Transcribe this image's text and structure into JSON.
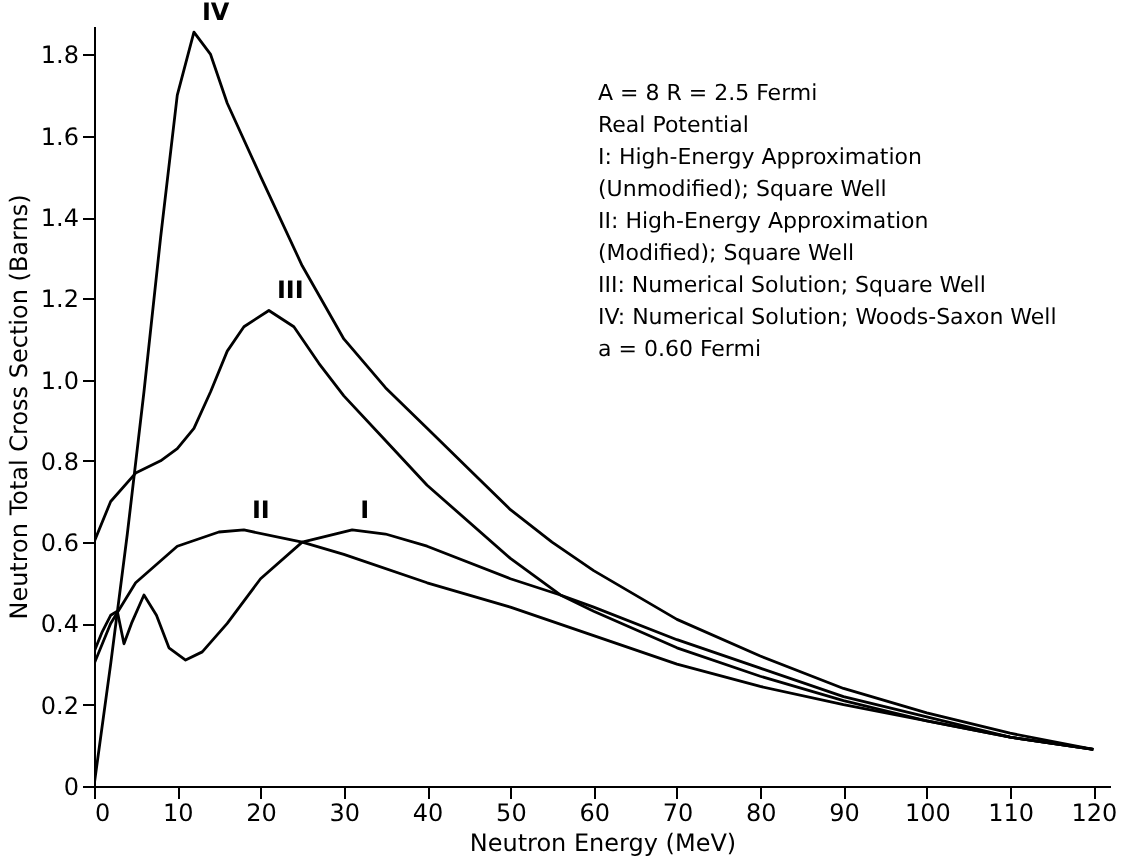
{
  "chart_data": {
    "type": "line",
    "xlabel": "Neutron Energy (MeV)",
    "ylabel": "Neutron Total Cross Section (Barns)",
    "xlim": [
      0,
      122
    ],
    "ylim": [
      0,
      1.87
    ],
    "xticks": [
      0,
      10,
      20,
      30,
      40,
      50,
      60,
      70,
      80,
      90,
      100,
      110,
      120
    ],
    "yticks": [
      0,
      {
        "value": 0.2,
        "label": "0.2"
      },
      {
        "value": 0.4,
        "label": "0.4"
      },
      {
        "value": 0.6,
        "label": "0.6"
      },
      {
        "value": 0.8,
        "label": "0.8"
      },
      {
        "value": 1,
        "label": "1.0"
      },
      {
        "value": 1.2,
        "label": "1.2"
      },
      {
        "value": 1.4,
        "label": "1.4"
      },
      {
        "value": 1.6,
        "label": "1.6"
      },
      {
        "value": 1.8,
        "label": "1.8"
      }
    ],
    "grid": false,
    "marker": "none",
    "line_style": "solid",
    "series": [
      {
        "name": "I",
        "color": "#000000",
        "x": [
          0,
          1,
          2,
          2.8,
          3.6,
          4.5,
          6,
          7.5,
          9,
          11,
          13,
          16,
          20,
          25,
          31,
          35,
          40,
          50,
          56,
          60,
          70,
          80,
          90,
          100,
          110,
          120
        ],
        "values": [
          0.33,
          0.38,
          0.42,
          0.43,
          0.35,
          0.4,
          0.47,
          0.42,
          0.34,
          0.31,
          0.33,
          0.4,
          0.51,
          0.6,
          0.63,
          0.62,
          0.59,
          0.51,
          0.47,
          0.44,
          0.36,
          0.29,
          0.22,
          0.17,
          0.12,
          0.09
        ]
      },
      {
        "name": "II",
        "color": "#000000",
        "x": [
          0,
          2,
          5,
          10,
          15,
          18,
          25,
          30,
          40,
          50,
          60,
          70,
          80,
          90,
          100,
          110,
          120
        ],
        "values": [
          0.3,
          0.4,
          0.5,
          0.59,
          0.625,
          0.63,
          0.6,
          0.57,
          0.5,
          0.44,
          0.37,
          0.3,
          0.245,
          0.2,
          0.16,
          0.12,
          0.09
        ]
      },
      {
        "name": "III",
        "color": "#000000",
        "x": [
          0,
          2,
          5,
          8,
          10,
          12,
          14,
          16,
          18,
          21,
          24,
          27,
          30,
          35,
          40,
          50,
          56,
          60,
          70,
          80,
          90,
          100,
          110,
          120
        ],
        "values": [
          0.6,
          0.7,
          0.77,
          0.8,
          0.83,
          0.88,
          0.97,
          1.07,
          1.13,
          1.17,
          1.13,
          1.04,
          0.96,
          0.85,
          0.74,
          0.56,
          0.47,
          0.43,
          0.34,
          0.27,
          0.21,
          0.16,
          0.12,
          0.09
        ]
      },
      {
        "name": "IV",
        "color": "#000000",
        "x": [
          0,
          2,
          4,
          6,
          8,
          10,
          12,
          14,
          16,
          20,
          25,
          30,
          35,
          40,
          45,
          50,
          55,
          60,
          70,
          80,
          90,
          100,
          110,
          120
        ],
        "values": [
          0,
          0.3,
          0.62,
          0.97,
          1.35,
          1.7,
          1.855,
          1.8,
          1.68,
          1.5,
          1.28,
          1.1,
          0.98,
          0.88,
          0.78,
          0.68,
          0.6,
          0.53,
          0.41,
          0.32,
          0.24,
          0.18,
          0.13,
          0.09
        ]
      }
    ],
    "annotations": [
      "A = 8   R = 2.5  Fermi",
      "Real Potential",
      "I: High-Energy Approximation",
      "(Unmodified); Square Well",
      "II: High-Energy Approximation",
      "(Modified); Square Well",
      "III: Numerical Solution; Square Well",
      "IV: Numerical Solution; Woods-Saxon Well",
      "a = 0.60 Fermi"
    ]
  }
}
